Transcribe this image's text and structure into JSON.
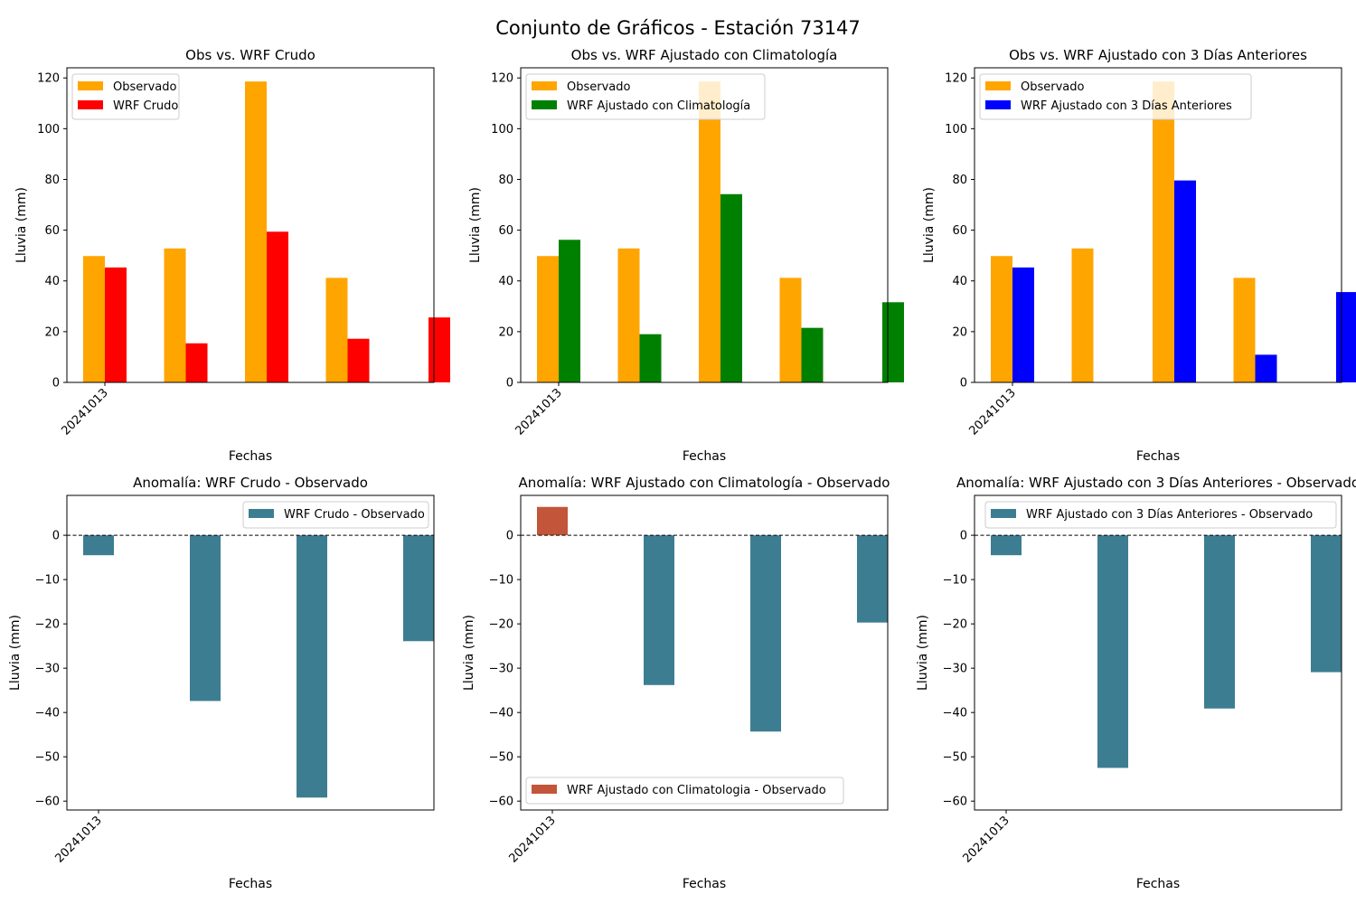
{
  "figure": {
    "suptitle": "Conjunto de Gráficos - Estación 73147"
  },
  "chart_data": [
    {
      "type": "bar",
      "title": "Obs vs. WRF Crudo",
      "xlabel": "Fechas",
      "ylabel": "Lluvia (mm)",
      "x_ticks": [
        "20241013"
      ],
      "ylim": [
        0,
        124
      ],
      "yticks": [
        0,
        20,
        40,
        60,
        80,
        100,
        120
      ],
      "legend_position": "top-left",
      "series": [
        {
          "name": "Observado",
          "color": "#ffa500",
          "values": [
            49.8,
            52.8,
            118.6,
            41.2,
            0
          ]
        },
        {
          "name": "WRF Crudo",
          "color": "#ff0000",
          "values": [
            45.3,
            15.4,
            59.4,
            17.2,
            25.6
          ]
        }
      ]
    },
    {
      "type": "bar",
      "title": "Obs vs. WRF Ajustado con Climatología",
      "xlabel": "Fechas",
      "ylabel": "Lluvia (mm)",
      "x_ticks": [
        "20241013"
      ],
      "ylim": [
        0,
        124
      ],
      "yticks": [
        0,
        20,
        40,
        60,
        80,
        100,
        120
      ],
      "legend_position": "top-left",
      "series": [
        {
          "name": "Observado",
          "color": "#ffa500",
          "values": [
            49.8,
            52.8,
            118.6,
            41.2,
            0
          ]
        },
        {
          "name": "WRF Ajustado con Climatología",
          "color": "#008000",
          "values": [
            56.2,
            19.0,
            74.2,
            21.5,
            31.6
          ]
        }
      ]
    },
    {
      "type": "bar",
      "title": "Obs vs. WRF Ajustado con 3 Días Anteriores",
      "xlabel": "Fechas",
      "ylabel": "Lluvia (mm)",
      "x_ticks": [
        "20241013"
      ],
      "ylim": [
        0,
        124
      ],
      "yticks": [
        0,
        20,
        40,
        60,
        80,
        100,
        120
      ],
      "legend_position": "top-left",
      "series": [
        {
          "name": "Observado",
          "color": "#ffa500",
          "values": [
            49.8,
            52.8,
            118.6,
            41.2,
            0
          ]
        },
        {
          "name": "WRF Ajustado con 3 Días Anteriores",
          "color": "#0000ff",
          "values": [
            45.3,
            0,
            79.6,
            10.9,
            35.6
          ]
        }
      ]
    },
    {
      "type": "bar",
      "title": "Anomalía: WRF Crudo - Observado",
      "xlabel": "Fechas",
      "ylabel": "Lluvia (mm)",
      "x_ticks": [
        "20241013"
      ],
      "ylim": [
        -62,
        9
      ],
      "yticks": [
        0,
        -10,
        -20,
        -30,
        -40,
        -50,
        -60
      ],
      "legend_position": "top-right",
      "legend": [
        {
          "name": "WRF Crudo - Observado",
          "color": "#3d7d92"
        }
      ],
      "zero_line": true,
      "series": [
        {
          "positive_color": "#c2553a",
          "negative_color": "#3d7d92",
          "values": [
            -4.5,
            -37.4,
            -59.2,
            -23.9
          ]
        }
      ]
    },
    {
      "type": "bar",
      "title": "Anomalía: WRF Ajustado con Climatología - Observado",
      "xlabel": "Fechas",
      "ylabel": "Lluvia (mm)",
      "x_ticks": [
        "20241013"
      ],
      "ylim": [
        -62,
        9
      ],
      "yticks": [
        0,
        -10,
        -20,
        -30,
        -40,
        -50,
        -60
      ],
      "legend_position": "bottom-left",
      "legend": [
        {
          "name": "WRF Ajustado con Climatologia - Observado",
          "color": "#c2553a"
        }
      ],
      "zero_line": true,
      "series": [
        {
          "positive_color": "#c2553a",
          "negative_color": "#3d7d92",
          "values": [
            6.4,
            -33.8,
            -44.3,
            -19.7
          ]
        }
      ]
    },
    {
      "type": "bar",
      "title": "Anomalía: WRF Ajustado con 3 Días Anteriores - Observado",
      "xlabel": "Fechas",
      "ylabel": "Lluvia (mm)",
      "x_ticks": [
        "20241013"
      ],
      "ylim": [
        -62,
        9
      ],
      "yticks": [
        0,
        -10,
        -20,
        -30,
        -40,
        -50,
        -60
      ],
      "legend_position": "top-right",
      "legend": [
        {
          "name": "WRF Ajustado con 3 Días Anteriores - Observado",
          "color": "#3d7d92"
        }
      ],
      "zero_line": true,
      "series": [
        {
          "positive_color": "#c2553a",
          "negative_color": "#3d7d92",
          "values": [
            -4.5,
            -52.5,
            -39.1,
            -30.9
          ]
        }
      ]
    }
  ]
}
